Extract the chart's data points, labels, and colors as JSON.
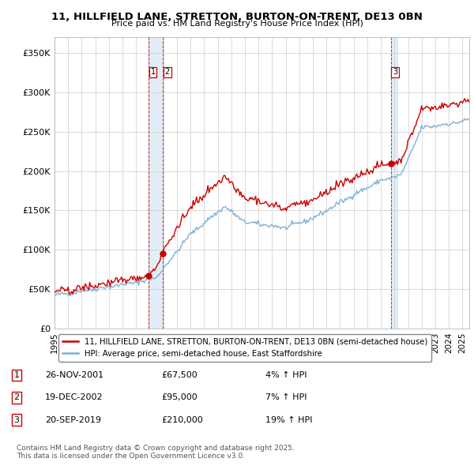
{
  "title_line1": "11, HILLFIELD LANE, STRETTON, BURTON-ON-TRENT, DE13 0BN",
  "title_line2": "Price paid vs. HM Land Registry's House Price Index (HPI)",
  "ylabel_ticks": [
    "£0",
    "£50K",
    "£100K",
    "£150K",
    "£200K",
    "£250K",
    "£300K",
    "£350K"
  ],
  "ytick_values": [
    0,
    50000,
    100000,
    150000,
    200000,
    250000,
    300000,
    350000
  ],
  "ylim": [
    0,
    370000
  ],
  "xlim_start": 1995.0,
  "xlim_end": 2025.5,
  "purchases": [
    {
      "num": 1,
      "date": "26-NOV-2001",
      "price": 67500,
      "year": 2001.91,
      "pct": "4%",
      "dir": "↑"
    },
    {
      "num": 2,
      "date": "19-DEC-2002",
      "price": 95000,
      "year": 2002.96,
      "pct": "7%",
      "dir": "↑"
    },
    {
      "num": 3,
      "date": "20-SEP-2019",
      "price": 210000,
      "year": 2019.72,
      "pct": "19%",
      "dir": "↑"
    }
  ],
  "legend_property_label": "11, HILLFIELD LANE, STRETTON, BURTON-ON-TRENT, DE13 0BN (semi-detached house)",
  "legend_hpi_label": "HPI: Average price, semi-detached house, East Staffordshire",
  "footer": "Contains HM Land Registry data © Crown copyright and database right 2025.\nThis data is licensed under the Open Government Licence v3.0.",
  "property_color": "#cc0000",
  "hpi_color": "#7eb0d5",
  "shade_color": "#d6e8f5",
  "vline_color": "#cc0000",
  "background_color": "#ffffff",
  "grid_color": "#cccccc"
}
